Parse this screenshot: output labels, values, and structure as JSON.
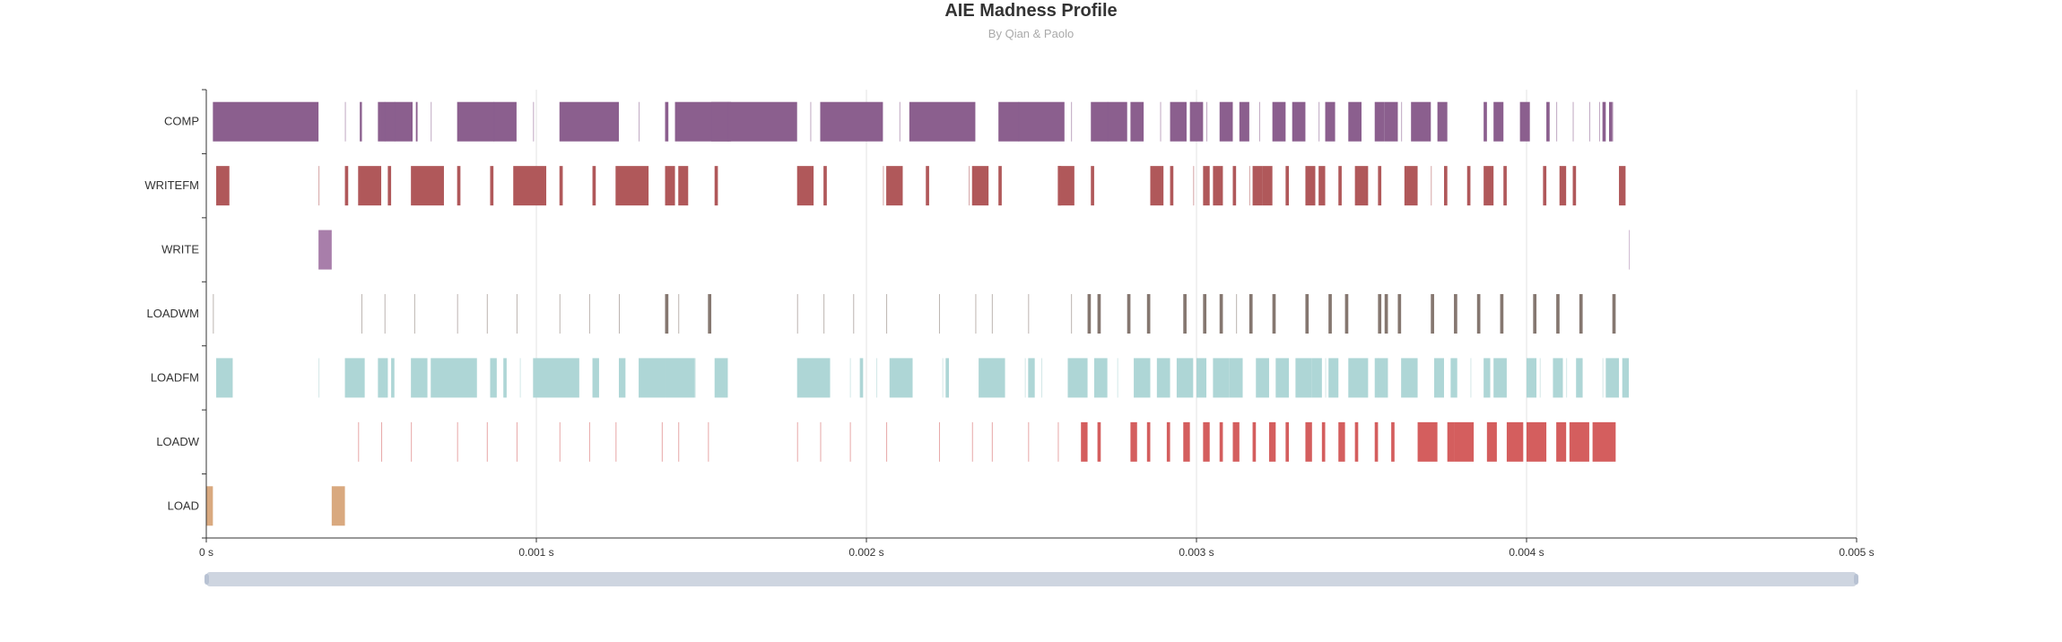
{
  "header": {
    "title": "AIE Madness Profile",
    "subtitle": "By Qian & Paolo"
  },
  "chart_data": {
    "type": "bar",
    "title": "AIE Madness Profile",
    "subtitle": "By Qian & Paolo",
    "xlabel": "",
    "ylabel": "",
    "xlim": [
      0,
      0.005
    ],
    "x_ticks": [
      {
        "value": 0,
        "label": "0 s"
      },
      {
        "value": 0.001,
        "label": "0.001 s"
      },
      {
        "value": 0.002,
        "label": "0.002 s"
      },
      {
        "value": 0.003,
        "label": "0.003 s"
      },
      {
        "value": 0.004,
        "label": "0.004 s"
      },
      {
        "value": 0.005,
        "label": "0.005 s"
      }
    ],
    "categories": [
      "COMP",
      "WRITEFM",
      "WRITE",
      "LOADWM",
      "LOADFM",
      "LOADW",
      "LOAD"
    ],
    "grid": true,
    "zoom_slider": {
      "start": 0,
      "end": 1
    },
    "series": [
      {
        "category": "COMP",
        "color": "#8b5f8e",
        "intervals": [
          [
            2e-05,
            0.00034
          ],
          [
            0.000465,
            0.00047
          ],
          [
            0.00052,
            0.000625
          ],
          [
            0.000635,
            0.00064
          ],
          [
            0.00076,
            0.00094
          ],
          [
            0.00107,
            0.00125
          ],
          [
            0.00139,
            0.0014
          ],
          [
            0.00142,
            0.00159
          ],
          [
            0.00153,
            0.00179
          ],
          [
            0.00186,
            0.00205
          ],
          [
            0.00213,
            0.00233
          ],
          [
            0.0024,
            0.0026
          ],
          [
            0.00268,
            0.00279
          ],
          [
            0.0028,
            0.00284
          ],
          [
            0.00292,
            0.00297
          ],
          [
            0.00298,
            0.00302
          ],
          [
            0.00307,
            0.00311
          ],
          [
            0.00313,
            0.00316
          ],
          [
            0.00323,
            0.00327
          ],
          [
            0.00329,
            0.00333
          ],
          [
            0.00339,
            0.00342
          ],
          [
            0.00346,
            0.0035
          ],
          [
            0.00354,
            0.00357
          ],
          [
            0.00357,
            0.00361
          ],
          [
            0.00365,
            0.00371
          ],
          [
            0.00373,
            0.00376
          ],
          [
            0.00387,
            0.00388
          ],
          [
            0.0039,
            0.00393
          ],
          [
            0.00398,
            0.00401
          ],
          [
            0.00406,
            0.00407
          ],
          [
            0.00423,
            0.00424
          ],
          [
            0.00425,
            0.00426
          ]
        ],
        "thin": [
          0.00042,
          0.00047,
          0.00054,
          0.00057,
          0.00068,
          0.00087,
          0.00099,
          0.00131,
          0.00158,
          0.00183,
          0.0021,
          0.00246,
          0.00262,
          0.00273,
          0.00289,
          0.00303,
          0.00319,
          0.00337,
          0.00362,
          0.00409,
          0.00414,
          0.00419,
          0.00422,
          0.00426
        ]
      },
      {
        "category": "WRITEFM",
        "color": "#b0585a",
        "intervals": [
          [
            3e-05,
            7e-05
          ],
          [
            0.00042,
            0.00043
          ],
          [
            0.00046,
            0.00053
          ],
          [
            0.00055,
            0.00056
          ],
          [
            0.00062,
            0.00072
          ],
          [
            0.00076,
            0.00077
          ],
          [
            0.00086,
            0.00087
          ],
          [
            0.00093,
            0.00103
          ],
          [
            0.00107,
            0.00108
          ],
          [
            0.00117,
            0.00118
          ],
          [
            0.00124,
            0.00134
          ],
          [
            0.00139,
            0.00142
          ],
          [
            0.00143,
            0.00146
          ],
          [
            0.00154,
            0.00155
          ],
          [
            0.00179,
            0.00184
          ],
          [
            0.00187,
            0.00188
          ],
          [
            0.00206,
            0.00211
          ],
          [
            0.00218,
            0.00219
          ],
          [
            0.00232,
            0.00237
          ],
          [
            0.0024,
            0.00241
          ],
          [
            0.00258,
            0.00259
          ],
          [
            0.00258,
            0.00263
          ],
          [
            0.00268,
            0.00269
          ],
          [
            0.00286,
            0.0029
          ],
          [
            0.00292,
            0.00293
          ],
          [
            0.00302,
            0.00304
          ],
          [
            0.00305,
            0.00308
          ],
          [
            0.00311,
            0.00312
          ],
          [
            0.00317,
            0.0032
          ],
          [
            0.0032,
            0.00323
          ],
          [
            0.00327,
            0.00328
          ],
          [
            0.00333,
            0.00336
          ],
          [
            0.00337,
            0.00339
          ],
          [
            0.00343,
            0.00344
          ],
          [
            0.00348,
            0.00352
          ],
          [
            0.00355,
            0.00356
          ],
          [
            0.00363,
            0.00367
          ],
          [
            0.00375,
            0.00376
          ],
          [
            0.00382,
            0.00383
          ],
          [
            0.00387,
            0.0039
          ],
          [
            0.00393,
            0.00394
          ],
          [
            0.00405,
            0.00406
          ],
          [
            0.0041,
            0.00412
          ],
          [
            0.00414,
            0.00415
          ],
          [
            0.00428,
            0.0043
          ]
        ],
        "thin": [
          0.00034,
          0.00205,
          0.00231,
          0.00299,
          0.00316,
          0.00371,
          0.0041
        ]
      },
      {
        "category": "WRITE",
        "color": "#a87eaa",
        "intervals": [
          [
            0.00034,
            0.00038
          ]
        ],
        "thin": [
          0.00431
        ]
      },
      {
        "category": "LOADWM",
        "color": "#857770",
        "intervals": [
          [
            0.00139,
            0.0014
          ],
          [
            0.00152,
            0.00153
          ],
          [
            0.00267,
            0.00268
          ],
          [
            0.0027,
            0.00271
          ],
          [
            0.00279,
            0.0028
          ],
          [
            0.00285,
            0.00286
          ],
          [
            0.00296,
            0.00297
          ],
          [
            0.00302,
            0.00303
          ],
          [
            0.00307,
            0.00308
          ],
          [
            0.00316,
            0.00317
          ],
          [
            0.00323,
            0.00324
          ],
          [
            0.00333,
            0.00334
          ],
          [
            0.0034,
            0.00341
          ],
          [
            0.00345,
            0.00346
          ],
          [
            0.00355,
            0.00356
          ],
          [
            0.00357,
            0.00358
          ],
          [
            0.00361,
            0.00362
          ],
          [
            0.00371,
            0.00372
          ],
          [
            0.00378,
            0.00379
          ],
          [
            0.00385,
            0.00386
          ],
          [
            0.00392,
            0.00393
          ],
          [
            0.00402,
            0.00403
          ],
          [
            0.00409,
            0.0041
          ],
          [
            0.00416,
            0.00417
          ],
          [
            0.00426,
            0.00427
          ]
        ],
        "thin": [
          2e-05,
          0.00047,
          0.00054,
          0.00063,
          0.00076,
          0.00085,
          0.00094,
          0.00107,
          0.00116,
          0.00125,
          0.00143,
          0.00179,
          0.00187,
          0.00196,
          0.00206,
          0.00222,
          0.00233,
          0.00238,
          0.00249,
          0.00262,
          0.00312
        ]
      },
      {
        "category": "LOADFM",
        "color": "#aed6d6",
        "intervals": [
          [
            3e-05,
            8e-05
          ],
          [
            0.00042,
            0.00048
          ],
          [
            0.00052,
            0.00055
          ],
          [
            0.00056,
            0.00057
          ],
          [
            0.00062,
            0.00067
          ],
          [
            0.00068,
            0.00082
          ],
          [
            0.00086,
            0.00088
          ],
          [
            0.0009,
            0.00091
          ],
          [
            0.00099,
            0.00113
          ],
          [
            0.00117,
            0.00119
          ],
          [
            0.00125,
            0.00127
          ],
          [
            0.00131,
            0.00139
          ],
          [
            0.00139,
            0.00148
          ],
          [
            0.00154,
            0.00158
          ],
          [
            0.00179,
            0.00189
          ],
          [
            0.00198,
            0.00199
          ],
          [
            0.00207,
            0.00214
          ],
          [
            0.00224,
            0.00225
          ],
          [
            0.00234,
            0.00242
          ],
          [
            0.00249,
            0.00251
          ],
          [
            0.00261,
            0.00267
          ],
          [
            0.00269,
            0.00273
          ],
          [
            0.00281,
            0.00286
          ],
          [
            0.00288,
            0.00292
          ],
          [
            0.00294,
            0.00299
          ],
          [
            0.003,
            0.00303
          ],
          [
            0.00305,
            0.0031
          ],
          [
            0.0031,
            0.00314
          ],
          [
            0.00318,
            0.00322
          ],
          [
            0.00324,
            0.00328
          ],
          [
            0.0033,
            0.00335
          ],
          [
            0.00335,
            0.00338
          ],
          [
            0.0034,
            0.00343
          ],
          [
            0.00346,
            0.00352
          ],
          [
            0.00354,
            0.00358
          ],
          [
            0.00362,
            0.00367
          ],
          [
            0.00372,
            0.00375
          ],
          [
            0.00377,
            0.00379
          ],
          [
            0.00387,
            0.00389
          ],
          [
            0.0039,
            0.00394
          ],
          [
            0.004,
            0.00403
          ],
          [
            0.00408,
            0.00411
          ],
          [
            0.00415,
            0.00417
          ],
          [
            0.00424,
            0.00428
          ],
          [
            0.00429,
            0.00431
          ]
        ],
        "thin": [
          0.00034,
          0.00095,
          0.00148,
          0.00195,
          0.00203,
          0.00223,
          0.00248,
          0.00253,
          0.00276,
          0.00339,
          0.00355,
          0.00383,
          0.00404,
          0.00412,
          0.00423
        ]
      },
      {
        "category": "LOADW",
        "color": "#d45e5e",
        "intervals": [
          [
            0.00265,
            0.00267
          ],
          [
            0.0027,
            0.00271
          ],
          [
            0.0028,
            0.00282
          ],
          [
            0.00285,
            0.00286
          ],
          [
            0.00291,
            0.00292
          ],
          [
            0.00296,
            0.00298
          ],
          [
            0.00302,
            0.00304
          ],
          [
            0.00307,
            0.00308
          ],
          [
            0.00311,
            0.00313
          ],
          [
            0.00317,
            0.00318
          ],
          [
            0.00322,
            0.00324
          ],
          [
            0.00327,
            0.00328
          ],
          [
            0.00333,
            0.00335
          ],
          [
            0.00338,
            0.00339
          ],
          [
            0.00343,
            0.00345
          ],
          [
            0.00348,
            0.00349
          ],
          [
            0.00354,
            0.00355
          ],
          [
            0.00359,
            0.0036
          ],
          [
            0.00367,
            0.00373
          ],
          [
            0.00376,
            0.00378
          ],
          [
            0.00378,
            0.00384
          ],
          [
            0.00388,
            0.00391
          ],
          [
            0.00394,
            0.00399
          ],
          [
            0.004,
            0.00406
          ],
          [
            0.00409,
            0.00412
          ],
          [
            0.00413,
            0.00419
          ],
          [
            0.0042,
            0.00427
          ]
        ],
        "thin": [
          0.00046,
          0.00053,
          0.00062,
          0.00076,
          0.00085,
          0.00094,
          0.00107,
          0.00116,
          0.00124,
          0.00138,
          0.00143,
          0.00152,
          0.00179,
          0.00186,
          0.00195,
          0.00206,
          0.00222,
          0.00232,
          0.00238,
          0.00249,
          0.00258
        ]
      },
      {
        "category": "LOAD",
        "color": "#d9a97f",
        "intervals": [
          [
            0.0,
            2e-05
          ],
          [
            0.00038,
            0.00042
          ]
        ],
        "thin": []
      }
    ]
  }
}
